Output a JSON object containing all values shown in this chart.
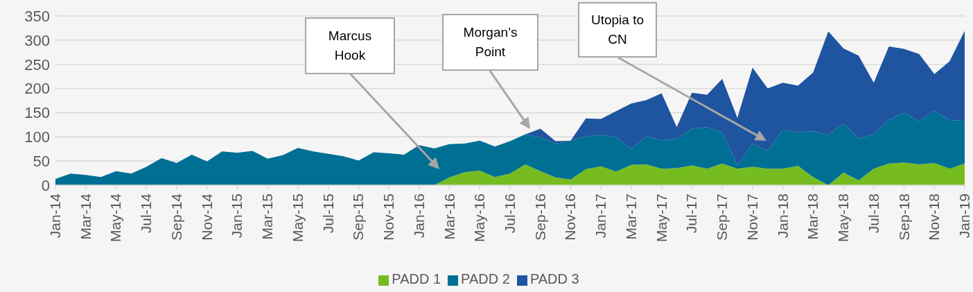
{
  "chart_data": {
    "type": "area",
    "stacked": true,
    "grid": "y",
    "legend": "bottom",
    "ylim": [
      0,
      350
    ],
    "yticks": [
      0,
      50,
      100,
      150,
      200,
      250,
      300,
      350
    ],
    "categories": [
      "Jan-14",
      null,
      "Mar-14",
      null,
      "May-14",
      null,
      "Jul-14",
      null,
      "Sep-14",
      null,
      "Nov-14",
      null,
      "Jan-15",
      null,
      "Mar-15",
      null,
      "May-15",
      null,
      "Jul-15",
      null,
      "Sep-15",
      null,
      "Nov-15",
      null,
      "Jan-16",
      null,
      "Mar-16",
      null,
      "May-16",
      null,
      "Jul-16",
      null,
      "Sep-16",
      null,
      "Nov-16",
      null,
      "Jan-17",
      null,
      "Mar-17",
      null,
      "May-17",
      null,
      "Jul-17",
      null,
      "Sep-17",
      null,
      "Nov-17",
      null,
      "Jan-18",
      null,
      "Mar-18",
      null,
      "May-18",
      null,
      "Jul-18",
      null,
      "Sep-18",
      null,
      "Nov-18",
      null,
      "Jan-19"
    ],
    "series": [
      {
        "name": "PADD 1",
        "color": "#76bc21",
        "values": [
          0,
          0,
          0,
          0,
          0,
          0,
          0,
          0,
          0,
          0,
          0,
          0,
          0,
          0,
          0,
          0,
          0,
          0,
          0,
          0,
          0,
          0,
          0,
          0,
          0,
          0,
          16,
          27,
          30,
          17,
          24,
          43,
          29,
          16,
          12,
          33,
          39,
          28,
          42,
          43,
          34,
          35,
          41,
          34,
          45,
          34,
          38,
          34,
          34,
          40,
          17,
          0,
          26,
          10,
          34,
          45,
          47,
          43,
          46,
          34,
          45
        ]
      },
      {
        "name": "PADD 2",
        "color": "#006f94",
        "values": [
          13,
          24,
          21,
          17,
          29,
          24,
          38,
          56,
          46,
          63,
          49,
          70,
          67,
          71,
          55,
          62,
          77,
          70,
          65,
          60,
          51,
          68,
          66,
          63,
          83,
          76,
          69,
          59,
          62,
          63,
          67,
          62,
          70,
          70,
          80,
          68,
          65,
          71,
          33,
          58,
          59,
          61,
          76,
          86,
          64,
          7,
          48,
          37,
          81,
          69,
          95,
          104,
          102,
          86,
          71,
          90,
          103,
          89,
          108,
          101,
          88
        ]
      },
      {
        "name": "PADD 3",
        "color": "#1f54a0",
        "values": [
          0,
          0,
          0,
          0,
          0,
          0,
          0,
          0,
          0,
          0,
          0,
          0,
          0,
          0,
          0,
          0,
          0,
          0,
          0,
          0,
          0,
          0,
          0,
          0,
          0,
          0,
          0,
          0,
          0,
          0,
          0,
          0,
          18,
          5,
          0,
          37,
          33,
          54,
          94,
          75,
          97,
          24,
          74,
          67,
          111,
          98,
          157,
          129,
          97,
          97,
          121,
          214,
          155,
          172,
          107,
          152,
          132,
          139,
          76,
          121,
          186
        ]
      }
    ],
    "annotations": [
      "Marcus Hook",
      "Morgan’s Point",
      "Utopia to CN"
    ]
  }
}
